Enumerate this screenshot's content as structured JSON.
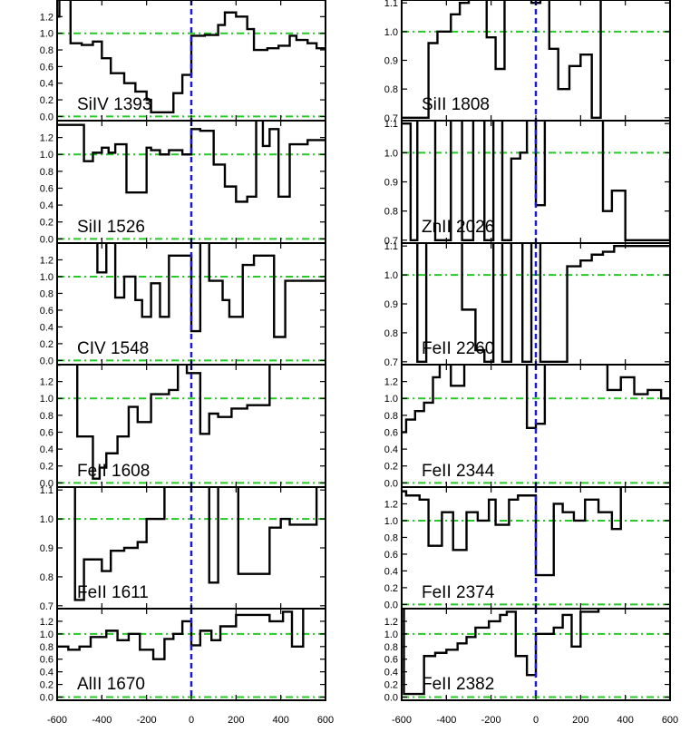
{
  "chart_data": {
    "type": "line",
    "title": "",
    "xlabel": "",
    "ylabel": "",
    "xlim": [
      -600,
      600
    ],
    "x_ticks": [
      "-600",
      "-400",
      "-200",
      "0",
      "200",
      "400",
      "600"
    ],
    "reference_lines": {
      "continuum": 1.0,
      "zero": 0.0,
      "velocity_zero": 0
    },
    "colors": {
      "spectrum": "#000000",
      "reference": "#22cc22",
      "zero_velocity": "#1a1acc"
    },
    "panels": [
      {
        "label": "SiIV 1393",
        "column": "left",
        "ylim": [
          -0.05,
          1.4
        ],
        "y_ticks": [
          "0.0",
          "0.2",
          "0.4",
          "0.6",
          "0.8",
          "1.0",
          "1.2"
        ],
        "x": [
          -600,
          -590,
          -540,
          -490,
          -440,
          -400,
          -360,
          -300,
          -250,
          -200,
          -180,
          -130,
          -80,
          -40,
          0,
          60,
          120,
          150,
          200,
          250,
          280,
          340,
          390,
          440,
          470,
          520,
          560,
          600
        ],
        "y": [
          1.2,
          1.45,
          0.88,
          0.86,
          0.9,
          0.7,
          0.52,
          0.4,
          0.3,
          0.2,
          0.05,
          0.05,
          0.28,
          0.5,
          0.97,
          0.98,
          1.1,
          1.25,
          1.2,
          1.05,
          0.8,
          0.82,
          0.85,
          0.97,
          0.92,
          0.88,
          0.82,
          0.82
        ]
      },
      {
        "label": "SiII 1526",
        "column": "left",
        "ylim": [
          -0.05,
          1.4
        ],
        "y_ticks": [
          "0.0",
          "0.2",
          "0.4",
          "0.6",
          "0.8",
          "1.0",
          "1.2"
        ],
        "x": [
          -600,
          -480,
          -440,
          -400,
          -370,
          -340,
          -290,
          -260,
          -200,
          -180,
          -140,
          -100,
          -70,
          -40,
          0,
          40,
          80,
          100,
          150,
          200,
          250,
          290,
          320,
          350,
          390,
          440,
          470,
          520,
          560,
          600
        ],
        "y": [
          1.35,
          0.92,
          1.02,
          1.08,
          1.02,
          1.12,
          0.55,
          0.55,
          1.08,
          1.05,
          1.0,
          1.05,
          1.05,
          1.0,
          1.3,
          1.28,
          1.28,
          0.88,
          0.62,
          0.44,
          0.5,
          1.45,
          1.1,
          1.3,
          0.5,
          1.12,
          1.12,
          1.17,
          1.17,
          1.17
        ]
      },
      {
        "label": "CIV 1548",
        "column": "left",
        "ylim": [
          -0.05,
          1.4
        ],
        "y_ticks": [
          "0.0",
          "0.2",
          "0.4",
          "0.6",
          "0.8",
          "1.0",
          "1.2"
        ],
        "x": [
          -600,
          -560,
          -450,
          -420,
          -380,
          -340,
          -300,
          -250,
          -220,
          -180,
          -140,
          -100,
          -80,
          -40,
          0,
          40,
          80,
          140,
          170,
          230,
          280,
          330,
          370,
          420,
          460,
          520,
          560,
          600
        ],
        "y": [
          1.45,
          1.45,
          1.45,
          1.05,
          1.45,
          0.75,
          1.0,
          0.72,
          0.52,
          0.92,
          0.52,
          1.25,
          1.25,
          1.25,
          0.35,
          1.45,
          0.95,
          0.72,
          0.52,
          1.14,
          1.25,
          1.25,
          0.28,
          0.95,
          0.95,
          0.95,
          0.95,
          0.95
        ]
      },
      {
        "label": "FeII 1608",
        "column": "left",
        "ylim": [
          -0.05,
          1.4
        ],
        "y_ticks": [
          "0.0",
          "0.2",
          "0.4",
          "0.6",
          "0.8",
          "1.0",
          "1.2"
        ],
        "x": [
          -600,
          -590,
          -510,
          -440,
          -410,
          -380,
          -330,
          -280,
          -240,
          -180,
          -100,
          -60,
          -20,
          40,
          80,
          120,
          180,
          250,
          300,
          350,
          400,
          450,
          500,
          550,
          600
        ],
        "y": [
          1.4,
          1.45,
          0.55,
          0.05,
          0.18,
          0.35,
          0.55,
          0.9,
          0.72,
          1.05,
          1.1,
          1.45,
          1.3,
          0.58,
          0.82,
          0.78,
          0.88,
          0.92,
          0.92,
          1.45,
          1.45,
          1.45,
          1.45,
          1.45,
          1.45
        ]
      },
      {
        "label": "FeII 1611",
        "column": "left",
        "ylim": [
          0.69,
          1.11
        ],
        "y_ticks": [
          "0.7",
          "0.8",
          "0.9",
          "1.0",
          "1.1"
        ],
        "x": [
          -600,
          -560,
          -520,
          -480,
          -440,
          -400,
          -360,
          -300,
          -240,
          -200,
          -160,
          -120,
          -80,
          -40,
          0,
          40,
          80,
          120,
          160,
          210,
          250,
          300,
          350,
          400,
          440,
          480,
          520,
          560,
          600
        ],
        "y": [
          1.12,
          1.12,
          0.72,
          0.86,
          0.86,
          0.82,
          0.89,
          0.9,
          0.92,
          1.0,
          1.0,
          1.12,
          1.12,
          1.12,
          1.12,
          1.12,
          0.78,
          1.12,
          1.12,
          0.81,
          0.81,
          0.81,
          0.97,
          1.0,
          0.98,
          0.98,
          0.98,
          1.12,
          1.12
        ]
      },
      {
        "label": "AlII 1670",
        "column": "left",
        "ylim": [
          -0.05,
          1.4
        ],
        "y_ticks": [
          "0.0",
          "0.2",
          "0.4",
          "0.6",
          "0.8",
          "1.0",
          "1.2"
        ],
        "x": [
          -600,
          -550,
          -500,
          -450,
          -380,
          -330,
          -280,
          -230,
          -170,
          -120,
          -80,
          -40,
          0,
          40,
          90,
          130,
          200,
          250,
          300,
          350,
          410,
          450,
          500,
          540,
          600
        ],
        "y": [
          0.8,
          0.75,
          0.8,
          0.95,
          1.05,
          0.9,
          1.0,
          0.75,
          0.6,
          0.92,
          1.0,
          1.2,
          0.82,
          1.05,
          0.9,
          1.12,
          1.3,
          1.3,
          1.3,
          1.2,
          1.35,
          0.8,
          1.45,
          1.45,
          1.45
        ]
      },
      {
        "label": "SiII 1808",
        "column": "right",
        "ylim": [
          0.69,
          1.11
        ],
        "y_ticks": [
          "0.7",
          "0.8",
          "0.9",
          "1.0",
          "1.1"
        ],
        "x": [
          -600,
          -590,
          -550,
          -480,
          -440,
          -380,
          -340,
          -300,
          -250,
          -220,
          -180,
          -140,
          -100,
          -60,
          -20,
          20,
          60,
          100,
          150,
          200,
          250,
          290,
          330,
          380,
          430,
          470,
          520,
          560,
          600
        ],
        "y": [
          0.7,
          0.7,
          0.7,
          0.96,
          1.0,
          1.06,
          1.1,
          1.12,
          1.12,
          0.98,
          0.87,
          1.12,
          1.12,
          1.12,
          1.1,
          1.12,
          0.94,
          0.8,
          0.88,
          0.92,
          0.7,
          1.12,
          1.12,
          1.12,
          1.12,
          1.12,
          1.12,
          1.12,
          1.12
        ]
      },
      {
        "label": "ZnII 2026",
        "column": "right",
        "ylim": [
          0.69,
          1.11
        ],
        "y_ticks": [
          "0.7",
          "0.8",
          "0.9",
          "1.0",
          "1.1"
        ],
        "x": [
          -600,
          -560,
          -530,
          -500,
          -450,
          -380,
          -330,
          -280,
          -230,
          -190,
          -150,
          -110,
          -70,
          -40,
          0,
          40,
          100,
          160,
          200,
          260,
          300,
          340,
          400,
          440,
          480,
          520,
          560,
          600
        ],
        "y": [
          1.1,
          0.7,
          1.12,
          1.12,
          0.7,
          1.12,
          0.7,
          1.12,
          0.7,
          1.12,
          0.7,
          0.98,
          1.0,
          1.12,
          0.82,
          1.12,
          1.12,
          1.12,
          1.12,
          1.12,
          0.8,
          0.87,
          0.7,
          0.7,
          0.7,
          0.7,
          0.7,
          0.98
        ]
      },
      {
        "label": "FeII 2260",
        "column": "right",
        "ylim": [
          0.69,
          1.11
        ],
        "y_ticks": [
          "0.7",
          "0.8",
          "0.9",
          "1.0",
          "1.1"
        ],
        "x": [
          -600,
          -560,
          -530,
          -490,
          -450,
          -400,
          -330,
          -270,
          -230,
          -190,
          -150,
          -110,
          -60,
          -20,
          20,
          60,
          100,
          140,
          200,
          250,
          300,
          350,
          400,
          450,
          500,
          550,
          600
        ],
        "y": [
          1.12,
          1.12,
          0.7,
          1.12,
          1.12,
          1.12,
          0.88,
          0.74,
          0.7,
          1.12,
          0.7,
          1.12,
          0.7,
          1.12,
          0.7,
          0.7,
          0.7,
          1.03,
          1.05,
          1.07,
          1.08,
          1.1,
          1.1,
          1.1,
          1.1,
          1.1,
          1.1
        ]
      },
      {
        "label": "FeII 2344",
        "column": "right",
        "ylim": [
          -0.05,
          1.4
        ],
        "y_ticks": [
          "0.0",
          "0.2",
          "0.4",
          "0.6",
          "0.8",
          "1.0",
          "1.2"
        ],
        "x": [
          -600,
          -580,
          -540,
          -500,
          -460,
          -430,
          -380,
          -320,
          -270,
          -210,
          -150,
          -100,
          -60,
          -40,
          0,
          40,
          80,
          140,
          200,
          260,
          320,
          380,
          440,
          500,
          560,
          600
        ],
        "y": [
          0.6,
          0.75,
          0.85,
          0.95,
          1.25,
          1.45,
          1.15,
          1.45,
          1.45,
          1.45,
          1.45,
          1.45,
          1.45,
          0.65,
          0.7,
          1.45,
          1.45,
          1.45,
          1.45,
          1.45,
          1.1,
          1.25,
          1.05,
          1.1,
          1.0,
          1.0
        ]
      },
      {
        "label": "FeII 2374",
        "column": "right",
        "ylim": [
          -0.05,
          1.4
        ],
        "y_ticks": [
          "0.0",
          "0.2",
          "0.4",
          "0.6",
          "0.8",
          "1.0",
          "1.2"
        ],
        "x": [
          -600,
          -580,
          -520,
          -480,
          -420,
          -370,
          -310,
          -260,
          -210,
          -180,
          -120,
          -80,
          -40,
          0,
          40,
          80,
          120,
          170,
          220,
          280,
          340,
          380,
          420,
          460,
          520,
          560,
          600
        ],
        "y": [
          1.35,
          1.3,
          1.25,
          0.7,
          1.1,
          0.65,
          1.1,
          1.0,
          1.25,
          0.95,
          1.25,
          1.3,
          1.3,
          0.35,
          0.35,
          1.2,
          1.1,
          1.0,
          1.25,
          1.1,
          0.9,
          1.45,
          1.45,
          1.45,
          1.45,
          1.45,
          1.45
        ]
      },
      {
        "label": "FeII 2382",
        "column": "right",
        "ylim": [
          -0.05,
          1.4
        ],
        "y_ticks": [
          "0.0",
          "0.2",
          "0.4",
          "0.6",
          "0.8",
          "1.0",
          "1.2"
        ],
        "x": [
          -600,
          -590,
          -540,
          -500,
          -450,
          -400,
          -350,
          -310,
          -270,
          -210,
          -160,
          -130,
          -90,
          -40,
          0,
          40,
          80,
          120,
          160,
          200,
          240,
          280,
          330,
          380,
          420,
          460,
          520,
          560,
          600
        ],
        "y": [
          1.45,
          0.05,
          0.05,
          0.65,
          0.7,
          0.75,
          0.85,
          0.95,
          1.1,
          1.2,
          1.3,
          1.35,
          0.65,
          0.35,
          1.0,
          1.0,
          1.1,
          1.3,
          0.8,
          1.35,
          1.35,
          1.45,
          1.45,
          1.45,
          1.45,
          1.45,
          1.45,
          1.45,
          1.45
        ]
      }
    ]
  }
}
